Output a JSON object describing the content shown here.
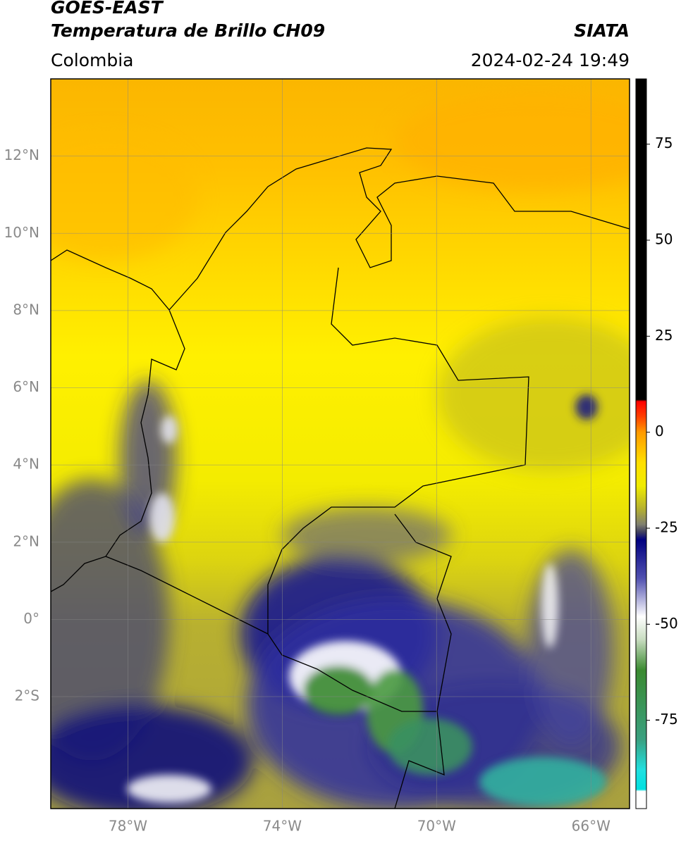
{
  "chart_data": {
    "type": "map",
    "title": "GOES-EAST",
    "subtitle": "Temperatura de Brillo CH09",
    "source": "SIATA",
    "region": "Colombia",
    "datetime": "2024-02-24 19:49",
    "xlim": [
      -80,
      -65
    ],
    "ylim": [
      -4.9,
      14
    ],
    "xticks": [
      {
        "value": -78,
        "label": "78°W"
      },
      {
        "value": -74,
        "label": "74°W"
      },
      {
        "value": -70,
        "label": "70°W"
      },
      {
        "value": -66,
        "label": "66°W"
      }
    ],
    "yticks": [
      {
        "value": 12,
        "label": "12°N"
      },
      {
        "value": 10,
        "label": "10°N"
      },
      {
        "value": 8,
        "label": "8°N"
      },
      {
        "value": 6,
        "label": "6°N"
      },
      {
        "value": 4,
        "label": "4°N"
      },
      {
        "value": 2,
        "label": "2°N"
      },
      {
        "value": 0,
        "label": "0°"
      },
      {
        "value": -2,
        "label": "2°S"
      }
    ],
    "grid": true,
    "colorbar": {
      "clim": [
        -98,
        92
      ],
      "ticks": [
        75,
        50,
        25,
        0,
        -25,
        -50,
        -75
      ],
      "stops": [
        {
          "value": 92,
          "color": "#000000"
        },
        {
          "value": 8.5,
          "color": "#000000"
        },
        {
          "value": 8,
          "color": "#ff0000"
        },
        {
          "value": 4,
          "color": "#ff4000"
        },
        {
          "value": 0,
          "color": "#ff9a00"
        },
        {
          "value": -8,
          "color": "#ffe000"
        },
        {
          "value": -14,
          "color": "#f0ec00"
        },
        {
          "value": -20,
          "color": "#b4b030"
        },
        {
          "value": -24,
          "color": "#808070"
        },
        {
          "value": -26,
          "color": "#404060"
        },
        {
          "value": -28,
          "color": "#000080"
        },
        {
          "value": -38,
          "color": "#5050b0"
        },
        {
          "value": -48,
          "color": "#ffffff"
        },
        {
          "value": -54,
          "color": "#c8dcc0"
        },
        {
          "value": -62,
          "color": "#3a8a30"
        },
        {
          "value": -80,
          "color": "#3aa080"
        },
        {
          "value": -88,
          "color": "#20e0e0"
        },
        {
          "value": -93,
          "color": "#00e0e0"
        },
        {
          "value": -93.5,
          "color": "#ffffff"
        },
        {
          "value": -98,
          "color": "#ffffff"
        }
      ]
    }
  }
}
